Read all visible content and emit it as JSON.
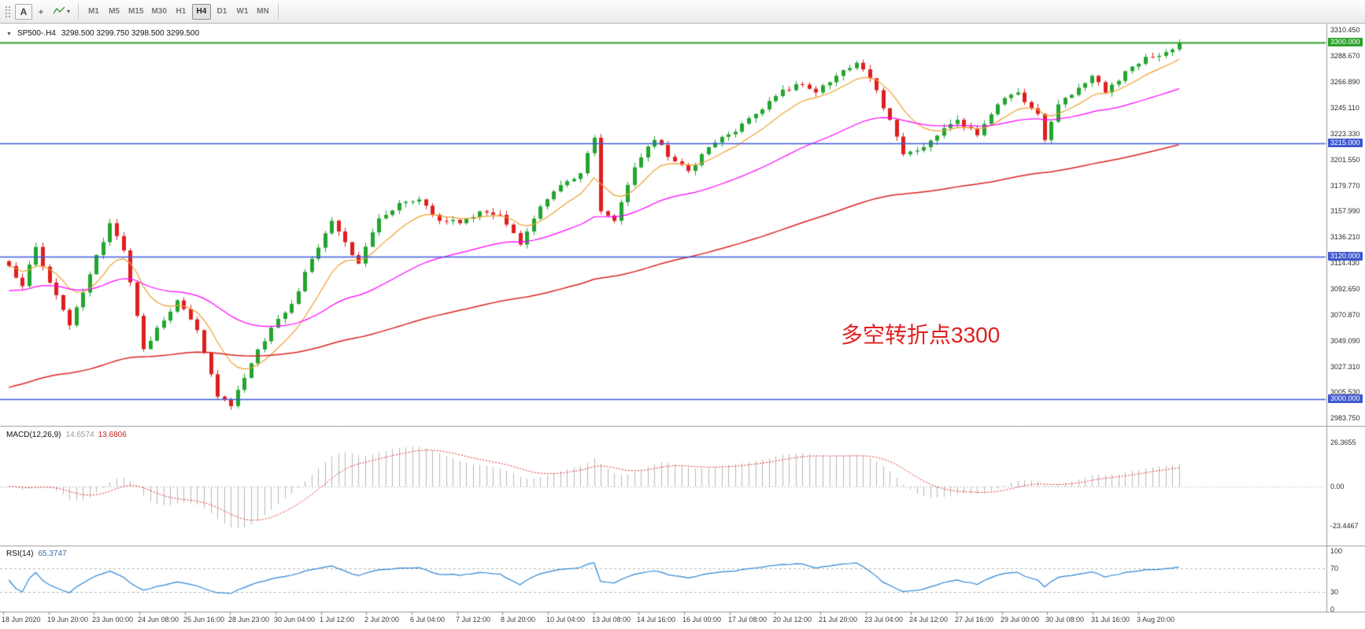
{
  "toolbar": {
    "font_button": "A",
    "icons": {
      "crosshair": "+",
      "dropdown_caret": "▾",
      "collapse_triangle": "▼"
    },
    "timeframes": [
      "M1",
      "M5",
      "M15",
      "M30",
      "H1",
      "H4",
      "D1",
      "W1",
      "MN"
    ],
    "active_timeframe": "H4"
  },
  "chart": {
    "header": {
      "symbol_tf": "SP500-.H4",
      "ohlc": "3298.500  3299.750  3298.500  3299.500"
    },
    "annotation": "多空转折点3300",
    "annotation_color": "#e02020",
    "hlines": [
      {
        "value": 3300.0,
        "line_color": "#2da32d",
        "label_bg": "#2da32d"
      },
      {
        "value": 3215.0,
        "line_color": "#3c5bdc",
        "label_bg": "#3f58cf"
      },
      {
        "value": 3120.0,
        "line_color": "#3c5bdc",
        "label_bg": "#3f58cf"
      },
      {
        "value": 3000.0,
        "line_color": "#3c5bdc",
        "label_bg": "#3f58cf"
      }
    ]
  },
  "macd_panel": {
    "label": "MACD(12,26,9)",
    "value_main": "14.6574",
    "value_signal": "13.6806",
    "axis": [
      {
        "label": "26.3655",
        "value": 26.3655
      },
      {
        "label": "0.00",
        "value": 0
      },
      {
        "label": "-23.4467",
        "value": -23.4467
      }
    ]
  },
  "rsi_panel": {
    "label": "RSI(14)",
    "value": "65.3747",
    "axis": [
      {
        "label": "100",
        "value": 100
      },
      {
        "label": "70",
        "value": 70
      },
      {
        "label": "30",
        "value": 30
      },
      {
        "label": "0",
        "value": 0
      }
    ],
    "levels": [
      70,
      30
    ]
  },
  "time_axis": [
    "18 Jun 2020",
    "19 Jun 20:00",
    "23 Jun 00:00",
    "24 Jun 08:00",
    "25 Jun 16:00",
    "28 Jun 23:00",
    "30 Jun 04:00",
    "1 Jul 12:00",
    "2 Jul 20:00",
    "6 Jul 04:00",
    "7 Jul 12:00",
    "8 Jul 20:00",
    "10 Jul 04:00",
    "13 Jul 08:00",
    "14 Jul 16:00",
    "16 Jul 00:00",
    "17 Jul 08:00",
    "20 Jul 12:00",
    "21 Jul 20:00",
    "23 Jul 04:00",
    "24 Jul 12:00",
    "27 Jul 16:00",
    "29 Jul 00:00",
    "30 Jul 08:00",
    "31 Jul 16:00",
    "3 Aug 20:00"
  ],
  "chart_data": {
    "type": "candlestick",
    "symbol": "SP500-",
    "timeframe": "H4",
    "current_ohlc": {
      "open": 3298.5,
      "high": 3299.75,
      "low": 3298.5,
      "close": 3299.5
    },
    "price_axis": {
      "plot_max": 3316,
      "plot_min": 2978,
      "tick_start": 3310.45,
      "tick_step": 21.78,
      "tick_count": 16
    },
    "horizontal_levels": [
      3300,
      3215,
      3120,
      3000
    ],
    "num_candles": 175,
    "close_waypoints": [
      [
        0,
        3112
      ],
      [
        2,
        3095
      ],
      [
        4,
        3128
      ],
      [
        6,
        3098
      ],
      [
        9,
        3062
      ],
      [
        12,
        3105
      ],
      [
        15,
        3148
      ],
      [
        17,
        3125
      ],
      [
        20,
        3042
      ],
      [
        23,
        3066
      ],
      [
        25,
        3083
      ],
      [
        28,
        3058
      ],
      [
        31,
        3002
      ],
      [
        33,
        2994
      ],
      [
        36,
        3030
      ],
      [
        39,
        3060
      ],
      [
        42,
        3080
      ],
      [
        45,
        3118
      ],
      [
        48,
        3150
      ],
      [
        50,
        3132
      ],
      [
        52,
        3114
      ],
      [
        55,
        3152
      ],
      [
        58,
        3165
      ],
      [
        61,
        3168
      ],
      [
        64,
        3150
      ],
      [
        67,
        3148
      ],
      [
        70,
        3158
      ],
      [
        73,
        3155
      ],
      [
        76,
        3130
      ],
      [
        79,
        3162
      ],
      [
        82,
        3180
      ],
      [
        85,
        3190
      ],
      [
        87,
        3220
      ],
      [
        88,
        3158
      ],
      [
        90,
        3150
      ],
      [
        93,
        3195
      ],
      [
        96,
        3218
      ],
      [
        99,
        3200
      ],
      [
        101,
        3192
      ],
      [
        104,
        3212
      ],
      [
        108,
        3225
      ],
      [
        111,
        3240
      ],
      [
        114,
        3255
      ],
      [
        117,
        3265
      ],
      [
        120,
        3258
      ],
      [
        123,
        3272
      ],
      [
        126,
        3283
      ],
      [
        128,
        3270
      ],
      [
        131,
        3235
      ],
      [
        133,
        3206
      ],
      [
        136,
        3212
      ],
      [
        139,
        3228
      ],
      [
        141,
        3235
      ],
      [
        144,
        3222
      ],
      [
        147,
        3248
      ],
      [
        150,
        3258
      ],
      [
        153,
        3240
      ],
      [
        154,
        3218
      ],
      [
        156,
        3248
      ],
      [
        159,
        3262
      ],
      [
        161,
        3272
      ],
      [
        163,
        3258
      ],
      [
        166,
        3276
      ],
      [
        169,
        3288
      ],
      [
        172,
        3292
      ],
      [
        174,
        3299.5
      ]
    ],
    "moving_averages": [
      {
        "name": "ma-fast",
        "color": "#f0a030",
        "period": 10
      },
      {
        "name": "ma-medium",
        "color": "#ff00ff",
        "period": 40,
        "init": 3090
      },
      {
        "name": "ma-slow",
        "color": "#dd2222",
        "period": 120,
        "init": 3008
      }
    ],
    "indicators": {
      "macd": {
        "fast": 12,
        "slow": 26,
        "signal": 9,
        "range": [
          -34,
          34
        ]
      },
      "rsi": {
        "period": 14,
        "range": [
          0,
          100
        ]
      }
    },
    "colors": {
      "up": "#23a52f",
      "down": "#df1f1f",
      "macd_hist": "#b9b9b9",
      "macd_signal": "#e03030",
      "rsi_line": "#2e86d5"
    }
  }
}
